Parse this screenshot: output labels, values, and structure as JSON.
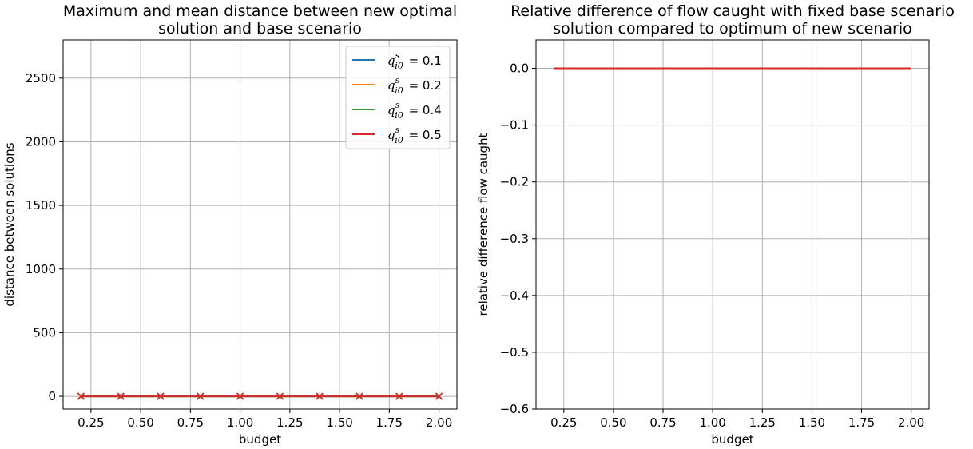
{
  "chart_data": [
    {
      "type": "line",
      "title": [
        "Maximum and mean distance between new optimal",
        "solution and base scenario"
      ],
      "xlabel": "budget",
      "ylabel": "distance between solutions",
      "xlim": [
        0.11,
        2.09
      ],
      "ylim": [
        -100,
        2800
      ],
      "xticks": [
        0.25,
        0.5,
        0.75,
        1.0,
        1.25,
        1.5,
        1.75,
        2.0
      ],
      "xtick_labels": [
        "0.25",
        "0.50",
        "0.75",
        "1.00",
        "1.25",
        "1.50",
        "1.75",
        "2.00"
      ],
      "yticks": [
        0,
        500,
        1000,
        1500,
        2000,
        2500
      ],
      "ytick_labels": [
        "0",
        "500",
        "1000",
        "1500",
        "2000",
        "2500"
      ],
      "grid": true,
      "legend_placement": "top-right",
      "x": [
        0.2,
        0.4,
        0.6,
        0.8,
        1.0,
        1.2,
        1.4,
        1.6,
        1.8,
        2.0
      ],
      "series": [
        {
          "name": "q_{i0}^{s} = 0.1",
          "legend_value": "0.1",
          "color": "#1f77b4",
          "values": [
            0,
            0,
            0,
            0,
            0,
            0,
            0,
            0,
            0,
            0
          ],
          "max_values": [
            0,
            0,
            0,
            0,
            0,
            0,
            0,
            0,
            0,
            0
          ]
        },
        {
          "name": "q_{i0}^{s} = 0.2",
          "legend_value": "0.2",
          "color": "#ff7f0e",
          "values": [
            0,
            0,
            0,
            0,
            0,
            0,
            0,
            0,
            0,
            0
          ],
          "max_values": [
            0,
            0,
            0,
            0,
            0,
            0,
            0,
            0,
            0,
            0
          ]
        },
        {
          "name": "q_{i0}^{s} = 0.4",
          "legend_value": "0.4",
          "color": "#2ca02c",
          "values": [
            0,
            0,
            0,
            0,
            0,
            0,
            0,
            0,
            0,
            0
          ],
          "max_values": [
            0,
            0,
            0,
            0,
            0,
            0,
            0,
            0,
            0,
            0
          ]
        },
        {
          "name": "q_{i0}^{s} = 0.5",
          "legend_value": "0.5",
          "color": "#d62728",
          "values": [
            0,
            0,
            0,
            0,
            0,
            0,
            0,
            0,
            0,
            0
          ],
          "max_values": [
            0,
            0,
            0,
            0,
            0,
            0,
            0,
            0,
            0,
            0
          ]
        }
      ]
    },
    {
      "type": "line",
      "title": [
        "Relative difference of flow caught with fixed base scenario",
        "solution compared to optimum of new scenario"
      ],
      "xlabel": "budget",
      "ylabel": "relative difference flow caught",
      "xlim": [
        0.11,
        2.09
      ],
      "ylim": [
        -0.6,
        0.05
      ],
      "xticks": [
        0.25,
        0.5,
        0.75,
        1.0,
        1.25,
        1.5,
        1.75,
        2.0
      ],
      "xtick_labels": [
        "0.25",
        "0.50",
        "0.75",
        "1.00",
        "1.25",
        "1.50",
        "1.75",
        "2.00"
      ],
      "yticks": [
        0.0,
        -0.1,
        -0.2,
        -0.3,
        -0.4,
        -0.5,
        -0.6
      ],
      "ytick_labels": [
        "0.0",
        "−0.1",
        "−0.2",
        "−0.3",
        "−0.4",
        "−0.5",
        "−0.6"
      ],
      "grid": true,
      "x": [
        0.2,
        0.4,
        0.6,
        0.8,
        1.0,
        1.2,
        1.4,
        1.6,
        1.8,
        2.0
      ],
      "series": [
        {
          "color": "#1f77b4",
          "values": [
            0,
            0,
            0,
            0,
            0,
            0,
            0,
            0,
            0,
            0
          ]
        },
        {
          "color": "#ff7f0e",
          "values": [
            0,
            0,
            0,
            0,
            0,
            0,
            0,
            0,
            0,
            0
          ]
        },
        {
          "color": "#2ca02c",
          "values": [
            0,
            0,
            0,
            0,
            0,
            0,
            0,
            0,
            0,
            0
          ]
        },
        {
          "color": "#d62728",
          "values": [
            0,
            0,
            0,
            0,
            0,
            0,
            0,
            0,
            0,
            0
          ]
        }
      ]
    }
  ]
}
